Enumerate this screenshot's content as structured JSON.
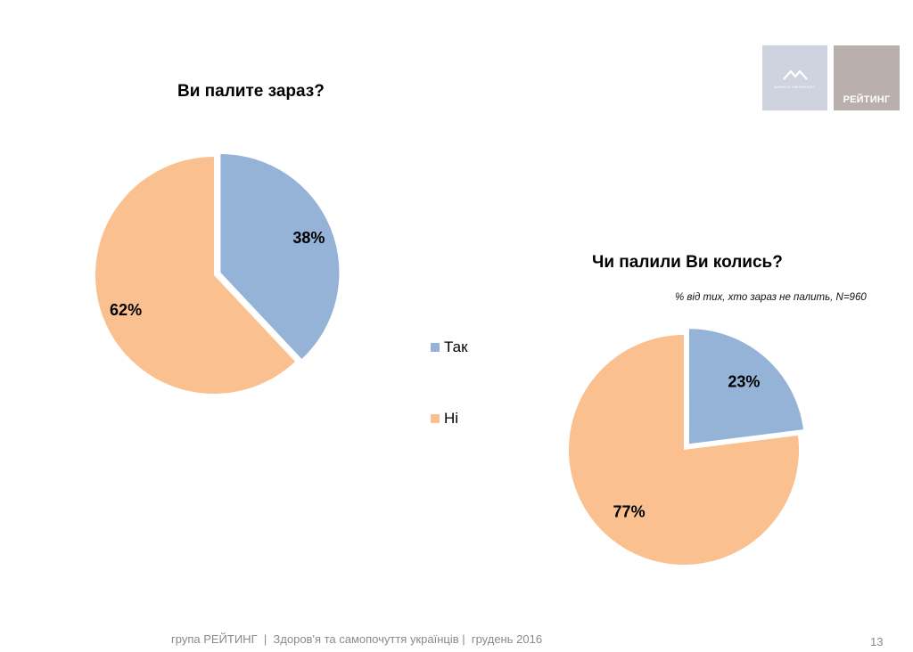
{
  "logos": {
    "left_text": "AARHUS UNIVERSITY",
    "right_text": "РЕЙТИНГ"
  },
  "footer": {
    "text": "група РЕЙТИНГ  |  Здоров'я та самопочуття українців |  грудень 2016",
    "page_number": "13"
  },
  "legend": [
    {
      "label": "Так",
      "color": "#95b3d7"
    },
    {
      "label": "Ні",
      "color": "#fac090"
    }
  ],
  "chart_data": [
    {
      "type": "pie",
      "title": "Ви палите зараз?",
      "categories": [
        "Так",
        "Ні"
      ],
      "values": [
        38,
        62
      ],
      "value_labels": [
        "38%",
        "62%"
      ],
      "colors": [
        "#95b3d7",
        "#fac090"
      ],
      "exploded": "Так"
    },
    {
      "type": "pie",
      "title": "Чи палили Ви колись?",
      "subtitle": "% від тих, хто зараз не палить, N=960",
      "categories": [
        "Так",
        "Ні"
      ],
      "values": [
        23,
        77
      ],
      "value_labels": [
        "23%",
        "77%"
      ],
      "colors": [
        "#95b3d7",
        "#fac090"
      ],
      "exploded": "Так"
    }
  ]
}
